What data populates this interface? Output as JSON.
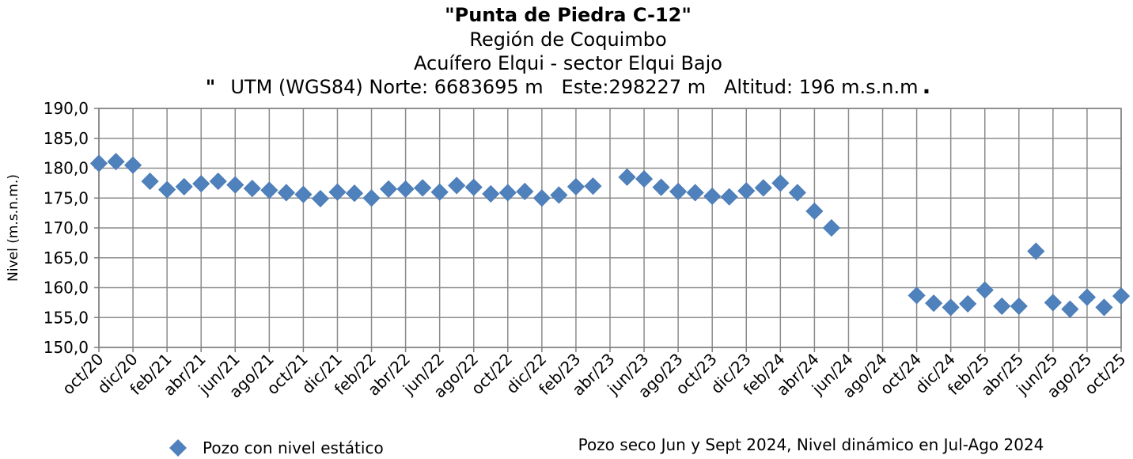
{
  "chart_data": {
    "type": "scatter",
    "title": "\"Punta de Piedra C-12\"",
    "subtitle_lines": [
      "Región de Coquimbo",
      "Acuífero Elqui - sector Elqui Bajo"
    ],
    "utm_line": {
      "quote": "\"",
      "text": "UTM (WGS84) Norte: 6683695 m   Este:298227 m   Altitud: 196 m.s.n.m",
      "dot": "."
    },
    "ylabel": "Nivel (m.s.n.m.)",
    "xlabel": "",
    "ylim": [
      150,
      190
    ],
    "yticks": [
      "150,0",
      "155,0",
      "160,0",
      "165,0",
      "170,0",
      "175,0",
      "180,0",
      "185,0",
      "190,0"
    ],
    "ytick_values": [
      150,
      155,
      160,
      165,
      170,
      175,
      180,
      185,
      190
    ],
    "x_range": [
      "2020-10",
      "2025-10"
    ],
    "x_months": [
      "2020-10",
      "2020-12",
      "2021-02",
      "2021-04",
      "2021-06",
      "2021-08",
      "2021-10",
      "2021-12",
      "2022-02",
      "2022-04",
      "2022-06",
      "2022-08",
      "2022-10",
      "2022-12",
      "2023-02",
      "2023-04",
      "2023-06",
      "2023-08",
      "2023-10",
      "2023-12",
      "2024-02",
      "2024-04",
      "2024-06",
      "2024-08",
      "2024-10",
      "2024-12",
      "2025-02",
      "2025-04",
      "2025-06",
      "2025-08",
      "2025-10"
    ],
    "x_tick_labels": [
      "oct/20",
      "dic/20",
      "feb/21",
      "abr/21",
      "jun/21",
      "ago/21",
      "oct/21",
      "dic/21",
      "feb/22",
      "abr/22",
      "jun/22",
      "ago/22",
      "oct/22",
      "dic/22",
      "feb/23",
      "abr/23",
      "jun/23",
      "ago/23",
      "oct/23",
      "dic/23",
      "feb/24",
      "abr/24",
      "jun/24",
      "ago/24",
      "oct/24",
      "dic/24",
      "feb/25",
      "abr/25",
      "jun/25",
      "ago/25",
      "oct/25"
    ],
    "grid": true,
    "legend_position": "bottom-left",
    "series": [
      {
        "name": "Pozo con nivel estático",
        "color": "#4f81bd",
        "marker": "diamond",
        "points": [
          {
            "x": "2020-10",
            "y": 180.8
          },
          {
            "x": "2020-11",
            "y": 181.1
          },
          {
            "x": "2020-12",
            "y": 180.5
          },
          {
            "x": "2021-01",
            "y": 177.8
          },
          {
            "x": "2021-02",
            "y": 176.4
          },
          {
            "x": "2021-03",
            "y": 176.9
          },
          {
            "x": "2021-04",
            "y": 177.4
          },
          {
            "x": "2021-05",
            "y": 177.8
          },
          {
            "x": "2021-06",
            "y": 177.2
          },
          {
            "x": "2021-07",
            "y": 176.6
          },
          {
            "x": "2021-08",
            "y": 176.3
          },
          {
            "x": "2021-09",
            "y": 175.9
          },
          {
            "x": "2021-10",
            "y": 175.6
          },
          {
            "x": "2021-11",
            "y": 174.9
          },
          {
            "x": "2021-12",
            "y": 176.0
          },
          {
            "x": "2022-01",
            "y": 175.8
          },
          {
            "x": "2022-02",
            "y": 175.0
          },
          {
            "x": "2022-03",
            "y": 176.5
          },
          {
            "x": "2022-04",
            "y": 176.5
          },
          {
            "x": "2022-05",
            "y": 176.7
          },
          {
            "x": "2022-06",
            "y": 176.0
          },
          {
            "x": "2022-07",
            "y": 177.1
          },
          {
            "x": "2022-08",
            "y": 176.8
          },
          {
            "x": "2022-09",
            "y": 175.7
          },
          {
            "x": "2022-10",
            "y": 175.9
          },
          {
            "x": "2022-11",
            "y": 176.1
          },
          {
            "x": "2022-12",
            "y": 175.0
          },
          {
            "x": "2023-01",
            "y": 175.5
          },
          {
            "x": "2023-02",
            "y": 176.9
          },
          {
            "x": "2023-03",
            "y": 177.0
          },
          {
            "x": "2023-05",
            "y": 178.5
          },
          {
            "x": "2023-06",
            "y": 178.2
          },
          {
            "x": "2023-07",
            "y": 176.8
          },
          {
            "x": "2023-08",
            "y": 176.1
          },
          {
            "x": "2023-09",
            "y": 175.9
          },
          {
            "x": "2023-10",
            "y": 175.3
          },
          {
            "x": "2023-11",
            "y": 175.2
          },
          {
            "x": "2023-12",
            "y": 176.2
          },
          {
            "x": "2024-01",
            "y": 176.7
          },
          {
            "x": "2024-02",
            "y": 177.5
          },
          {
            "x": "2024-03",
            "y": 175.9
          },
          {
            "x": "2024-04",
            "y": 172.8
          },
          {
            "x": "2024-05",
            "y": 170.0
          },
          {
            "x": "2024-10",
            "y": 158.7
          },
          {
            "x": "2024-11",
            "y": 157.4
          },
          {
            "x": "2024-12",
            "y": 156.7
          },
          {
            "x": "2025-01",
            "y": 157.3
          },
          {
            "x": "2025-02",
            "y": 159.6
          },
          {
            "x": "2025-03",
            "y": 156.9
          },
          {
            "x": "2025-04",
            "y": 156.9
          },
          {
            "x": "2025-05",
            "y": 166.1
          },
          {
            "x": "2025-06",
            "y": 157.5
          },
          {
            "x": "2025-07",
            "y": 156.4
          },
          {
            "x": "2025-08",
            "y": 158.4
          },
          {
            "x": "2025-09",
            "y": 156.7
          },
          {
            "x": "2025-10",
            "y": 158.6
          }
        ]
      }
    ],
    "annotation": "Pozo seco Jun y Sept 2024, Nivel dinámico en Jul-Ago 2024"
  }
}
